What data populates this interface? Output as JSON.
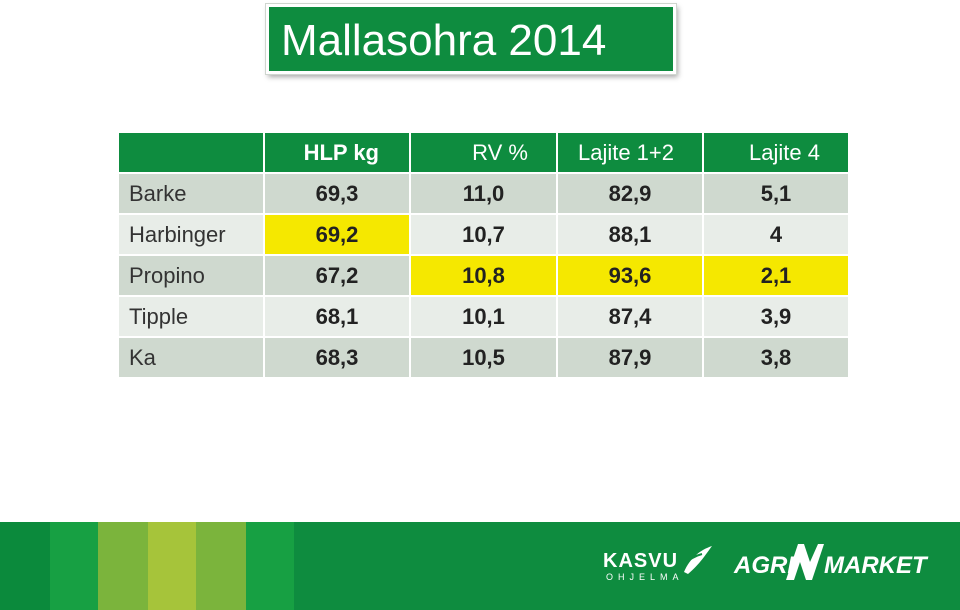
{
  "title": "Mallasohra 2014",
  "table": {
    "headers": [
      "",
      "HLP kg",
      "RV %",
      "Lajite 1+2",
      "Lajite 4"
    ],
    "rows": [
      {
        "name": "Barke",
        "values": [
          "69,3",
          "11,0",
          "82,9",
          "5,1"
        ],
        "highlight": [
          false,
          false,
          false,
          false
        ]
      },
      {
        "name": "Harbinger",
        "values": [
          "69,2",
          "10,7",
          "88,1",
          "4"
        ],
        "highlight": [
          true,
          false,
          false,
          false
        ]
      },
      {
        "name": "Propino",
        "values": [
          "67,2",
          "10,8",
          "93,6",
          "2,1"
        ],
        "highlight": [
          false,
          true,
          true,
          true
        ]
      },
      {
        "name": "Tipple",
        "values": [
          "68,1",
          "10,1",
          "87,4",
          "3,9"
        ],
        "highlight": [
          false,
          false,
          false,
          false
        ]
      },
      {
        "name": "Ka",
        "values": [
          "68,3",
          "10,5",
          "87,9",
          "3,8"
        ],
        "highlight": [
          false,
          false,
          false,
          false
        ]
      }
    ],
    "highlight_color": "#f5e800"
  },
  "footer": {
    "brand_color": "#0e8c3f",
    "logo_kasvu": "KASVU",
    "logo_kasvu_sub": "OHJELMA",
    "logo_agri": "AGRI",
    "logo_market": "MARKET"
  }
}
